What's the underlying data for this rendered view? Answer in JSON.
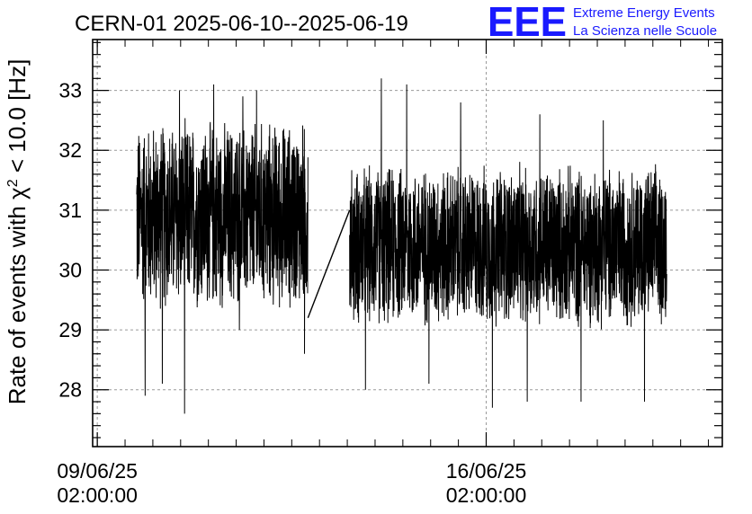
{
  "chart_data": {
    "type": "line",
    "title": "CERN-01 2025-06-10--2025-06-19",
    "ylabel_prefix": "Rate of events with ",
    "ylabel_chi": "χ",
    "ylabel_sup": "2",
    "ylabel_suffix": " < 10.0 [Hz]",
    "xlabel": "",
    "x_ticks": [
      {
        "line1": "09/06/25",
        "line2": "02:00:00",
        "date": "2025-06-09T02:00:00"
      },
      {
        "line1": "16/06/25",
        "line2": "02:00:00",
        "date": "2025-06-16T02:00:00"
      }
    ],
    "xlim": [
      "2025-06-09T00:00:00",
      "2025-06-20T08:00:00"
    ],
    "ylim": [
      27.05,
      33.85
    ],
    "y_ticks": [
      28,
      29,
      30,
      31,
      32,
      33
    ],
    "grid": true,
    "series": [
      {
        "segments": [
          {
            "start": "2025-06-09T19:00:00",
            "end": "2025-06-12T21:00:00",
            "mean": 30.9,
            "band_low": 29.2,
            "band_high": 32.6,
            "dips": [
              [
                0.05,
                27.9
              ],
              [
                0.28,
                27.6
              ],
              [
                0.15,
                28.1
              ],
              [
                0.6,
                29.0
              ],
              [
                0.98,
                28.6
              ]
            ],
            "peaks": [
              [
                0.25,
                33.0
              ],
              [
                0.45,
                33.1
              ],
              [
                0.7,
                33.0
              ],
              [
                0.62,
                32.9
              ]
            ]
          },
          {
            "start": "2025-06-13T15:00:00",
            "end": "2025-06-19T08:00:00",
            "mean": 30.4,
            "band_low": 28.9,
            "band_high": 31.8,
            "dips": [
              [
                0.05,
                28.0
              ],
              [
                0.25,
                28.1
              ],
              [
                0.45,
                27.7
              ],
              [
                0.56,
                27.8
              ],
              [
                0.73,
                27.8
              ],
              [
                0.93,
                27.8
              ]
            ],
            "peaks": [
              [
                0.1,
                33.2
              ],
              [
                0.18,
                33.1
              ],
              [
                0.35,
                32.8
              ],
              [
                0.6,
                32.6
              ],
              [
                0.8,
                32.5
              ]
            ]
          }
        ],
        "gap_link": {
          "from": 29.2,
          "to": 31.0
        }
      }
    ]
  },
  "logo": {
    "mark": "EEE",
    "line1": "Extreme Energy Events",
    "line2": "La Scienza nelle Scuole"
  }
}
